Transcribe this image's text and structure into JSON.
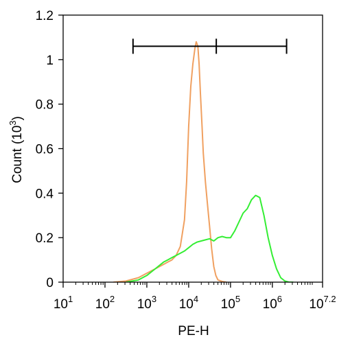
{
  "chart_data": {
    "type": "histogram",
    "xlabel": "PE-H",
    "ylabel_main": "Count",
    "ylabel_paren_open": "(",
    "ylabel_base": "10",
    "ylabel_exp": "3",
    "ylabel_paren_close": ")",
    "x_scale": "log10",
    "xlim": [
      1,
      7.2
    ],
    "ylim": [
      0,
      1.2
    ],
    "x_ticks": [
      {
        "base": "10",
        "exp": "1",
        "value": 1
      },
      {
        "base": "10",
        "exp": "2",
        "value": 2
      },
      {
        "base": "10",
        "exp": "3",
        "value": 3
      },
      {
        "base": "10",
        "exp": "4",
        "value": 4
      },
      {
        "base": "10",
        "exp": "5",
        "value": 5
      },
      {
        "base": "10",
        "exp": "6",
        "value": 6
      },
      {
        "base": "10",
        "exp": "7.2",
        "value": 7.2
      }
    ],
    "y_ticks": [
      {
        "label": "0",
        "value": 0
      },
      {
        "label": "0.2",
        "value": 0.2
      },
      {
        "label": "0.4",
        "value": 0.4
      },
      {
        "label": "0.6",
        "value": 0.6
      },
      {
        "label": "0.8",
        "value": 0.8
      },
      {
        "label": "1",
        "value": 1.0
      },
      {
        "label": "1.2",
        "value": 1.2
      }
    ],
    "gate": {
      "y": 1.06,
      "x_start": 2.67,
      "x_mid": 4.66,
      "x_end": 6.34
    },
    "series": [
      {
        "color": "#f0a060",
        "x": [
          2.2,
          2.5,
          2.8,
          3.0,
          3.2,
          3.4,
          3.5,
          3.6,
          3.7,
          3.8,
          3.9,
          3.95,
          4.0,
          4.05,
          4.1,
          4.15,
          4.18,
          4.22,
          4.25,
          4.28,
          4.32,
          4.35,
          4.4,
          4.45,
          4.5,
          4.55,
          4.6,
          4.65,
          4.7,
          4.8,
          4.9
        ],
        "y": [
          0,
          0.005,
          0.02,
          0.04,
          0.06,
          0.08,
          0.09,
          0.1,
          0.12,
          0.16,
          0.28,
          0.45,
          0.7,
          0.88,
          0.98,
          1.05,
          1.08,
          1.06,
          0.98,
          0.85,
          0.7,
          0.58,
          0.45,
          0.35,
          0.25,
          0.15,
          0.07,
          0.03,
          0.01,
          0.003,
          0
        ]
      },
      {
        "color": "#33ee33",
        "x": [
          2.5,
          2.8,
          3.0,
          3.2,
          3.4,
          3.5,
          3.6,
          3.7,
          3.8,
          3.9,
          4.0,
          4.1,
          4.2,
          4.3,
          4.4,
          4.5,
          4.6,
          4.7,
          4.8,
          4.9,
          5.0,
          5.1,
          5.2,
          5.3,
          5.4,
          5.5,
          5.6,
          5.7,
          5.8,
          5.9,
          6.0,
          6.1,
          6.2,
          6.3,
          6.4,
          6.5
        ],
        "y": [
          0,
          0.01,
          0.03,
          0.06,
          0.09,
          0.1,
          0.11,
          0.12,
          0.13,
          0.14,
          0.155,
          0.17,
          0.18,
          0.185,
          0.19,
          0.195,
          0.185,
          0.2,
          0.205,
          0.2,
          0.2,
          0.23,
          0.27,
          0.31,
          0.33,
          0.37,
          0.39,
          0.38,
          0.3,
          0.2,
          0.12,
          0.06,
          0.02,
          0.005,
          0,
          0
        ]
      }
    ]
  }
}
